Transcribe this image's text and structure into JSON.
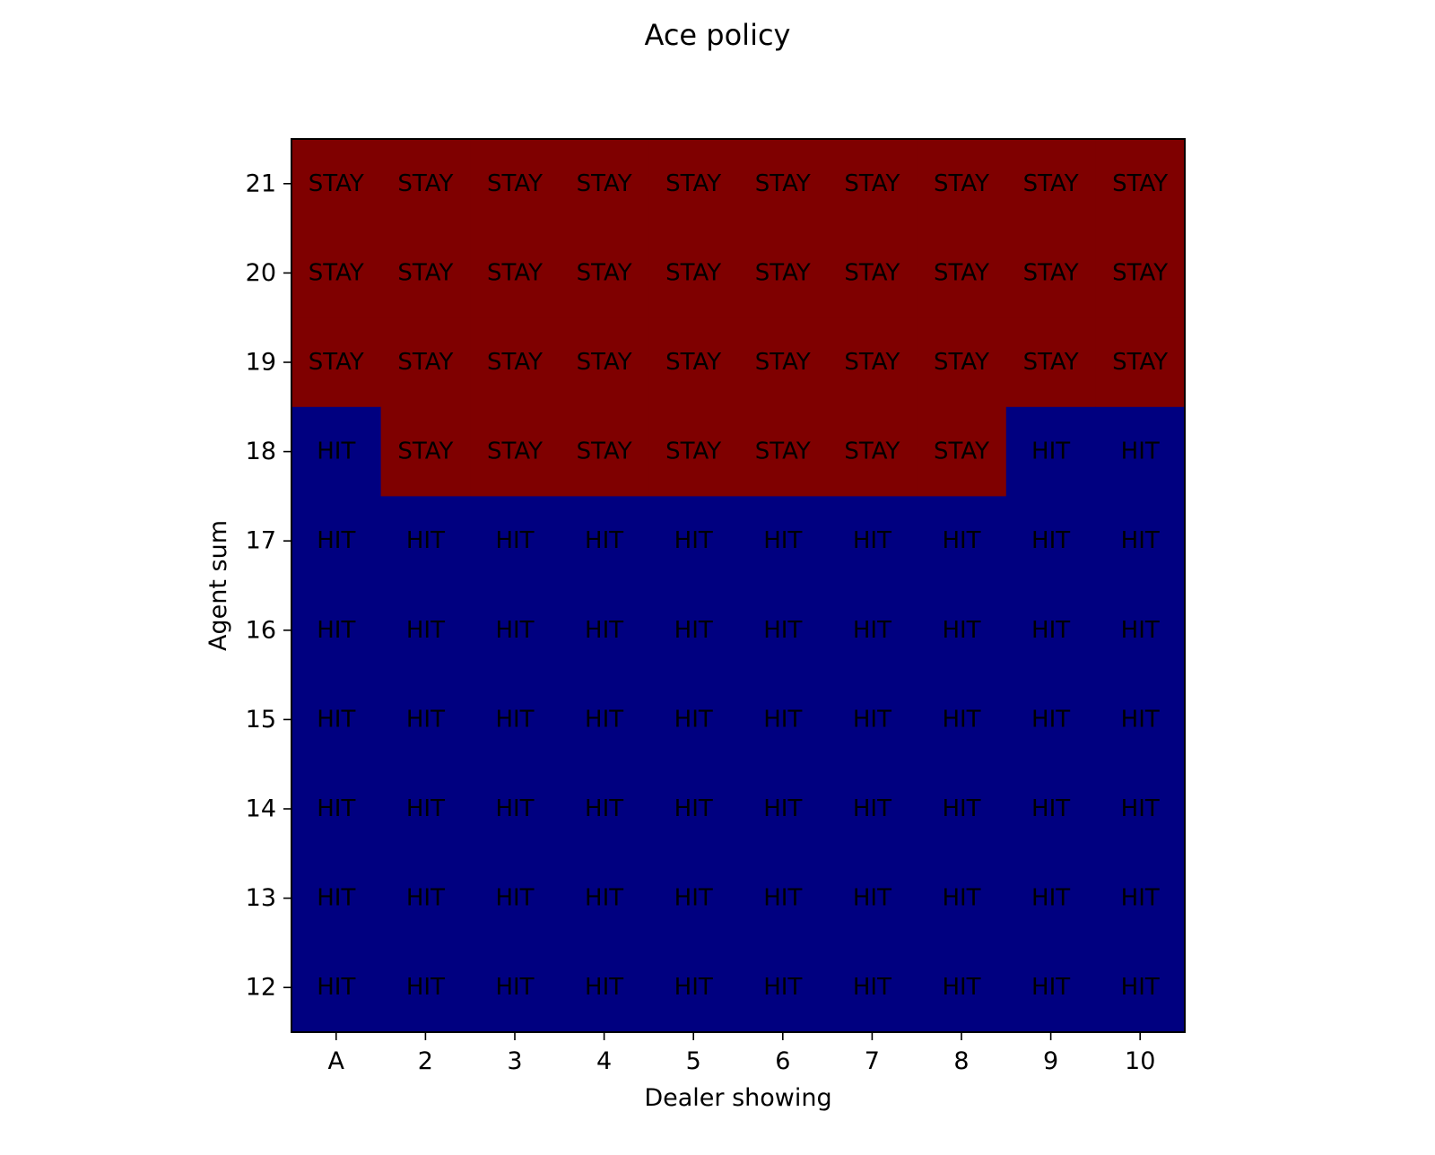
{
  "chart_data": {
    "type": "heatmap",
    "title": "Ace policy",
    "xlabel": "Dealer showing",
    "ylabel": "Agent sum",
    "x_categories": [
      "A",
      "2",
      "3",
      "4",
      "5",
      "6",
      "7",
      "8",
      "9",
      "10"
    ],
    "y_categories": [
      "21",
      "20",
      "19",
      "18",
      "17",
      "16",
      "15",
      "14",
      "13",
      "12"
    ],
    "values": [
      [
        "STAY",
        "STAY",
        "STAY",
        "STAY",
        "STAY",
        "STAY",
        "STAY",
        "STAY",
        "STAY",
        "STAY"
      ],
      [
        "STAY",
        "STAY",
        "STAY",
        "STAY",
        "STAY",
        "STAY",
        "STAY",
        "STAY",
        "STAY",
        "STAY"
      ],
      [
        "STAY",
        "STAY",
        "STAY",
        "STAY",
        "STAY",
        "STAY",
        "STAY",
        "STAY",
        "STAY",
        "STAY"
      ],
      [
        "HIT",
        "STAY",
        "STAY",
        "STAY",
        "STAY",
        "STAY",
        "STAY",
        "STAY",
        "HIT",
        "HIT"
      ],
      [
        "HIT",
        "HIT",
        "HIT",
        "HIT",
        "HIT",
        "HIT",
        "HIT",
        "HIT",
        "HIT",
        "HIT"
      ],
      [
        "HIT",
        "HIT",
        "HIT",
        "HIT",
        "HIT",
        "HIT",
        "HIT",
        "HIT",
        "HIT",
        "HIT"
      ],
      [
        "HIT",
        "HIT",
        "HIT",
        "HIT",
        "HIT",
        "HIT",
        "HIT",
        "HIT",
        "HIT",
        "HIT"
      ],
      [
        "HIT",
        "HIT",
        "HIT",
        "HIT",
        "HIT",
        "HIT",
        "HIT",
        "HIT",
        "HIT",
        "HIT"
      ],
      [
        "HIT",
        "HIT",
        "HIT",
        "HIT",
        "HIT",
        "HIT",
        "HIT",
        "HIT",
        "HIT",
        "HIT"
      ],
      [
        "HIT",
        "HIT",
        "HIT",
        "HIT",
        "HIT",
        "HIT",
        "HIT",
        "HIT",
        "HIT",
        "HIT"
      ]
    ],
    "colors": {
      "STAY": "#7f0000",
      "HIT": "#000080"
    },
    "grid": false,
    "legend": "none"
  }
}
